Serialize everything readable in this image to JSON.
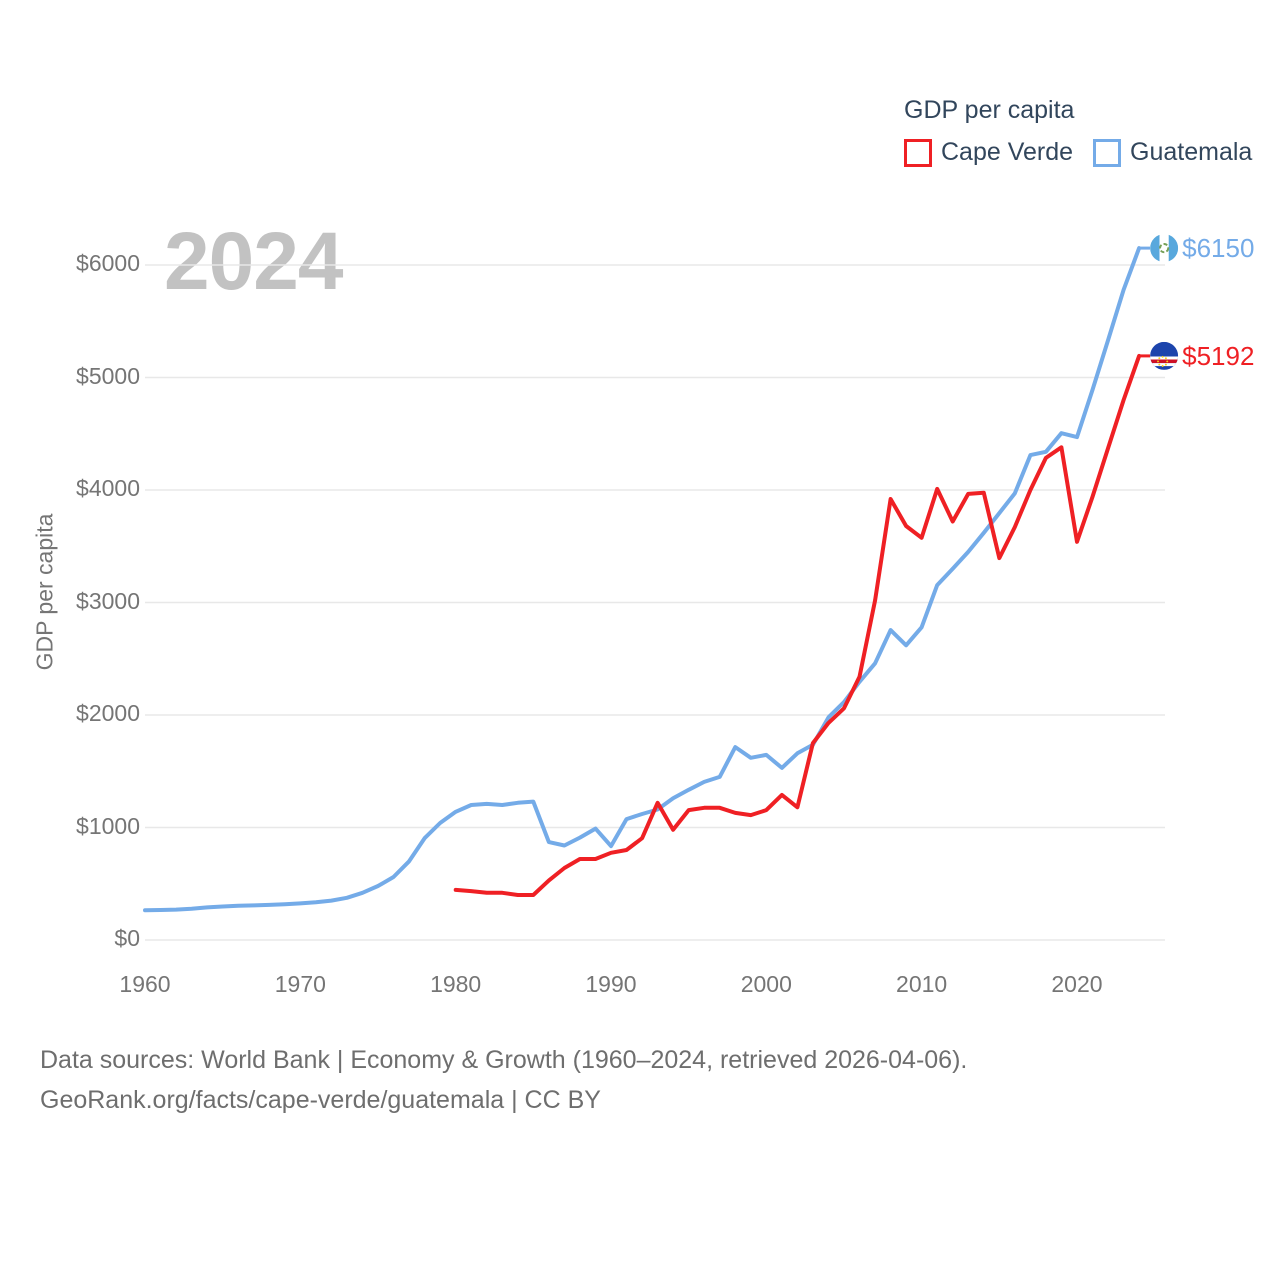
{
  "legend": {
    "title": "GDP per capita",
    "items": [
      {
        "label": "Cape Verde",
        "color": "#ef2024"
      },
      {
        "label": "Guatemala",
        "color": "#74abe8"
      }
    ]
  },
  "footer": {
    "line1": "Data sources: World Bank | Economy & Growth (1960–2024, retrieved 2026-04-06).",
    "line2": "GeoRank.org/facts/cape-verde/guatemala | CC BY"
  },
  "chart_data": {
    "type": "line",
    "title": "GDP per capita",
    "ylabel": "GDP per capita",
    "watermark": "2024",
    "x_ticks": [
      1960,
      1970,
      1980,
      1990,
      2000,
      2010,
      2020
    ],
    "y_ticks": [
      0,
      1000,
      2000,
      3000,
      4000,
      5000,
      6000
    ],
    "y_tick_labels": [
      "$0",
      "$1000",
      "$2000",
      "$3000",
      "$4000",
      "$5000",
      "$6000"
    ],
    "xlim": [
      1960,
      2024
    ],
    "ylim": [
      0,
      6400
    ],
    "grid": "horizontal",
    "legend_position": "top-right",
    "series": [
      {
        "name": "Cape Verde",
        "color": "#ef2024",
        "start_year": 1980,
        "end_label": "$5192",
        "flag": "cape-verde",
        "values": [
          445,
          435,
          420,
          420,
          400,
          400,
          530,
          640,
          720,
          720,
          775,
          800,
          905,
          1220,
          980,
          1155,
          1175,
          1175,
          1130,
          1110,
          1155,
          1290,
          1180,
          1750,
          1930,
          2060,
          2340,
          3020,
          3920,
          3680,
          3575,
          4010,
          3720,
          3965,
          3975,
          3395,
          3670,
          4000,
          4285,
          4380,
          3540,
          3940,
          4370,
          4800,
          5192
        ]
      },
      {
        "name": "Guatemala",
        "color": "#74abe8",
        "start_year": 1960,
        "end_label": "$6150",
        "flag": "guatemala",
        "values": [
          265,
          267,
          270,
          278,
          290,
          298,
          305,
          308,
          312,
          318,
          325,
          335,
          350,
          375,
          420,
          480,
          560,
          700,
          905,
          1040,
          1140,
          1200,
          1210,
          1200,
          1220,
          1230,
          870,
          840,
          910,
          990,
          835,
          1075,
          1120,
          1160,
          1260,
          1335,
          1405,
          1450,
          1715,
          1620,
          1645,
          1530,
          1660,
          1735,
          1980,
          2115,
          2295,
          2460,
          2755,
          2620,
          2780,
          3155,
          3300,
          3450,
          3620,
          3795,
          3970,
          4310,
          4340,
          4505,
          4470,
          4890,
          5330,
          5780,
          6150
        ]
      }
    ]
  }
}
